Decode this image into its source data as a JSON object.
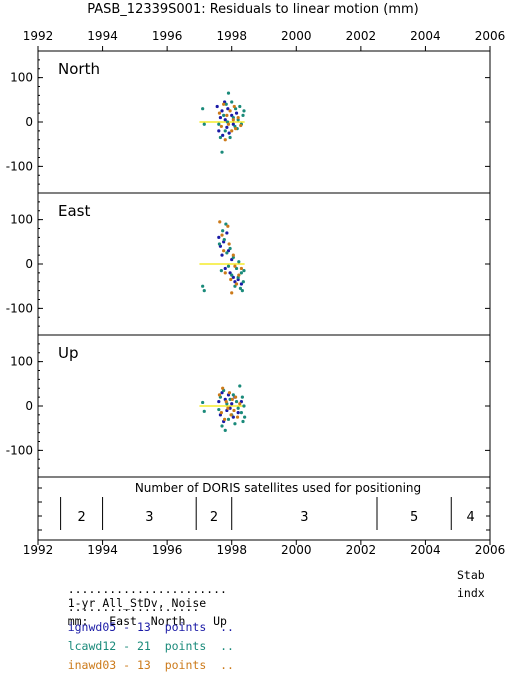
{
  "title": "PASB_12339S001: Residuals to linear motion (mm)",
  "colors": {
    "igs": "#1a1aa6",
    "lca": "#1a8a7a",
    "ina": "#cc7a1a",
    "trend": "#f2e600",
    "frame": "#000000"
  },
  "chart_data": [
    {
      "type": "scatter",
      "panel": "North",
      "xlim": [
        1992,
        2006
      ],
      "ylim": [
        -160,
        160
      ],
      "x_ticks": [
        "1992",
        "1994",
        "1996",
        "1998",
        "2000",
        "2002",
        "2004",
        "2006"
      ],
      "y_ticks": [
        "100",
        "0",
        "-100"
      ],
      "y_tick_values": [
        100,
        0,
        -100
      ],
      "trend": {
        "x": [
          1997.0,
          1998.4
        ],
        "y": [
          0,
          0
        ]
      },
      "series": [
        {
          "color": "igs",
          "points": [
            [
              1997.55,
              35
            ],
            [
              1997.6,
              -20
            ],
            [
              1997.65,
              10
            ],
            [
              1997.7,
              25
            ],
            [
              1997.72,
              -30
            ],
            [
              1997.78,
              45
            ],
            [
              1997.8,
              5
            ],
            [
              1997.85,
              -12
            ],
            [
              1997.88,
              30
            ],
            [
              1997.92,
              -25
            ],
            [
              1998.0,
              15
            ],
            [
              1998.05,
              -5
            ],
            [
              1998.15,
              20
            ]
          ]
        },
        {
          "color": "lca",
          "points": [
            [
              1997.1,
              30
            ],
            [
              1997.15,
              -5
            ],
            [
              1997.6,
              -5
            ],
            [
              1997.65,
              -35
            ],
            [
              1997.7,
              -68
            ],
            [
              1997.75,
              15
            ],
            [
              1997.8,
              -20
            ],
            [
              1997.83,
              40
            ],
            [
              1997.87,
              0
            ],
            [
              1997.9,
              65
            ],
            [
              1997.95,
              -35
            ],
            [
              1998.0,
              45
            ],
            [
              1998.05,
              10
            ],
            [
              1998.1,
              -10
            ],
            [
              1998.12,
              30
            ],
            [
              1998.17,
              -15
            ],
            [
              1998.2,
              5
            ],
            [
              1998.25,
              35
            ],
            [
              1998.3,
              -5
            ],
            [
              1998.35,
              15
            ],
            [
              1998.38,
              25
            ]
          ]
        },
        {
          "color": "ina",
          "points": [
            [
              1997.62,
              20
            ],
            [
              1997.68,
              -10
            ],
            [
              1997.75,
              40
            ],
            [
              1997.8,
              -40
            ],
            [
              1997.85,
              15
            ],
            [
              1997.9,
              -5
            ],
            [
              1997.95,
              25
            ],
            [
              1998.0,
              -20
            ],
            [
              1998.05,
              5
            ],
            [
              1998.08,
              35
            ],
            [
              1998.12,
              -15
            ],
            [
              1998.2,
              10
            ],
            [
              1998.28,
              -8
            ]
          ]
        }
      ]
    },
    {
      "type": "scatter",
      "panel": "East",
      "xlim": [
        1992,
        2006
      ],
      "ylim": [
        -160,
        160
      ],
      "x_ticks": [
        "1992",
        "1994",
        "1996",
        "1998",
        "2000",
        "2002",
        "2004",
        "2006"
      ],
      "y_ticks": [
        "100",
        "0",
        "-100"
      ],
      "y_tick_values": [
        100,
        0,
        -100
      ],
      "trend": {
        "x": [
          1997.0,
          1998.4
        ],
        "y": [
          0,
          0
        ]
      },
      "series": [
        {
          "color": "igs",
          "points": [
            [
              1997.6,
              60
            ],
            [
              1997.65,
              40
            ],
            [
              1997.7,
              20
            ],
            [
              1997.75,
              50
            ],
            [
              1997.8,
              -10
            ],
            [
              1997.85,
              70
            ],
            [
              1997.9,
              30
            ],
            [
              1997.95,
              -20
            ],
            [
              1998.0,
              10
            ],
            [
              1998.05,
              -30
            ],
            [
              1998.1,
              -40
            ],
            [
              1998.2,
              -35
            ],
            [
              1998.3,
              -45
            ]
          ]
        },
        {
          "color": "lca",
          "points": [
            [
              1997.1,
              -50
            ],
            [
              1997.15,
              -60
            ],
            [
              1997.62,
              45
            ],
            [
              1997.68,
              -15
            ],
            [
              1997.72,
              75
            ],
            [
              1997.77,
              55
            ],
            [
              1997.82,
              90
            ],
            [
              1997.85,
              25
            ],
            [
              1997.9,
              -5
            ],
            [
              1997.95,
              35
            ],
            [
              1998.0,
              -25
            ],
            [
              1998.05,
              15
            ],
            [
              1998.1,
              -50
            ],
            [
              1998.15,
              -10
            ],
            [
              1998.2,
              -30
            ],
            [
              1998.22,
              5
            ],
            [
              1998.27,
              -55
            ],
            [
              1998.3,
              -20
            ],
            [
              1998.33,
              -60
            ],
            [
              1998.36,
              -40
            ],
            [
              1998.38,
              -15
            ]
          ]
        },
        {
          "color": "ina",
          "points": [
            [
              1997.63,
              95
            ],
            [
              1997.7,
              65
            ],
            [
              1997.75,
              30
            ],
            [
              1997.8,
              -20
            ],
            [
              1997.88,
              85
            ],
            [
              1997.92,
              45
            ],
            [
              1997.97,
              -35
            ],
            [
              1998.0,
              -65
            ],
            [
              1998.05,
              20
            ],
            [
              1998.1,
              -5
            ],
            [
              1998.15,
              -45
            ],
            [
              1998.22,
              -25
            ],
            [
              1998.3,
              -10
            ]
          ]
        }
      ]
    },
    {
      "type": "scatter",
      "panel": "Up",
      "xlim": [
        1992,
        2006
      ],
      "ylim": [
        -160,
        160
      ],
      "x_ticks": [
        "1992",
        "1994",
        "1996",
        "1998",
        "2000",
        "2002",
        "2004",
        "2006"
      ],
      "y_ticks": [
        "100",
        "0",
        "-100"
      ],
      "y_tick_values": [
        100,
        0,
        -100
      ],
      "trend": {
        "x": [
          1997.0,
          1998.4
        ],
        "y": [
          0,
          0
        ]
      },
      "series": [
        {
          "color": "igs",
          "points": [
            [
              1997.6,
              10
            ],
            [
              1997.65,
              -20
            ],
            [
              1997.7,
              30
            ],
            [
              1997.75,
              -35
            ],
            [
              1997.8,
              15
            ],
            [
              1997.85,
              -10
            ],
            [
              1997.9,
              25
            ],
            [
              1997.95,
              -5
            ],
            [
              1998.0,
              5
            ],
            [
              1998.05,
              -25
            ],
            [
              1998.1,
              20
            ],
            [
              1998.2,
              -15
            ],
            [
              1998.3,
              10
            ]
          ]
        },
        {
          "color": "lca",
          "points": [
            [
              1997.1,
              8
            ],
            [
              1997.15,
              -12
            ],
            [
              1997.6,
              -8
            ],
            [
              1997.65,
              20
            ],
            [
              1997.7,
              -45
            ],
            [
              1997.75,
              35
            ],
            [
              1997.8,
              -55
            ],
            [
              1997.85,
              5
            ],
            [
              1997.9,
              -30
            ],
            [
              1997.95,
              15
            ],
            [
              1998.0,
              -20
            ],
            [
              1998.05,
              25
            ],
            [
              1998.1,
              -40
            ],
            [
              1998.15,
              10
            ],
            [
              1998.2,
              -5
            ],
            [
              1998.25,
              45
            ],
            [
              1998.3,
              -15
            ],
            [
              1998.33,
              20
            ],
            [
              1998.35,
              -35
            ],
            [
              1998.38,
              0
            ],
            [
              1998.4,
              -25
            ]
          ]
        },
        {
          "color": "ina",
          "points": [
            [
              1997.62,
              25
            ],
            [
              1997.68,
              -15
            ],
            [
              1997.72,
              40
            ],
            [
              1997.78,
              -30
            ],
            [
              1997.83,
              10
            ],
            [
              1997.88,
              -5
            ],
            [
              1997.93,
              30
            ],
            [
              1997.98,
              -20
            ],
            [
              1998.02,
              15
            ],
            [
              1998.07,
              -10
            ],
            [
              1998.12,
              20
            ],
            [
              1998.18,
              -25
            ],
            [
              1998.25,
              5
            ]
          ]
        }
      ]
    },
    {
      "type": "table",
      "panel": "Number of DORIS satellites used for positioning",
      "xlim": [
        1992,
        2006
      ],
      "boundaries": [
        1992.7,
        1994.0,
        1996.9,
        1998.0,
        2002.5,
        2004.8
      ],
      "segments": [
        {
          "start": 1992.7,
          "end": 1994.0,
          "label": "2"
        },
        {
          "start": 1994.0,
          "end": 1996.9,
          "label": "3"
        },
        {
          "start": 1996.9,
          "end": 1998.0,
          "label": "2"
        },
        {
          "start": 1998.0,
          "end": 2002.5,
          "label": "3"
        },
        {
          "start": 2002.5,
          "end": 2004.8,
          "label": "5"
        },
        {
          "start": 2004.8,
          "end": 2006.0,
          "label": "4"
        }
      ]
    }
  ],
  "footer": {
    "header1_dots": ".......................",
    "header1_text": "1-yr All_StDv, Noise",
    "header1_right": "Stab",
    "header2_dots": "...................",
    "header2_text": "mm:   East  North    Up",
    "header2_right": "indx",
    "rows": [
      {
        "name": "ignwd05",
        "sep": "-",
        "count": "13",
        "unit": "points",
        "tail": "..",
        "color": "igs"
      },
      {
        "name": "lcawd12",
        "sep": "-",
        "count": "21",
        "unit": "points",
        "tail": "..",
        "color": "lca"
      },
      {
        "name": "inawd03",
        "sep": "-",
        "count": "13",
        "unit": "points",
        "tail": "..",
        "color": "ina"
      }
    ]
  }
}
